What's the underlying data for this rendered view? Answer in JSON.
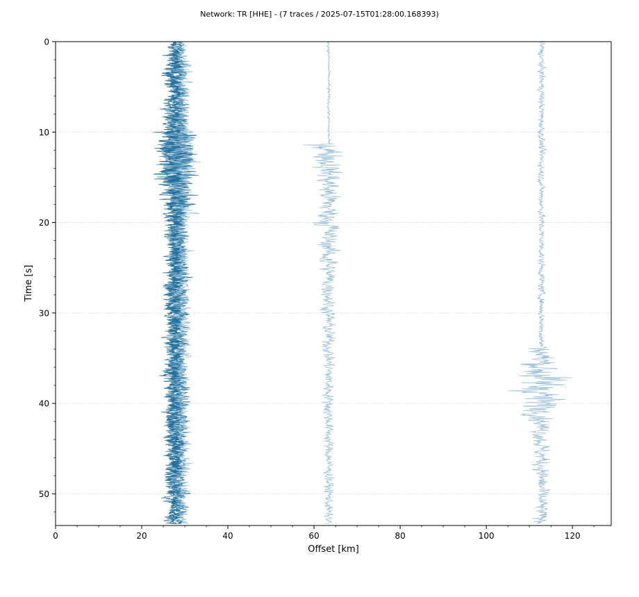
{
  "chart_data": {
    "type": "seismic-record-section",
    "title": "Network: TR [HHE] - (7 traces / 2025-07-15T01:28:00.168393)",
    "xlabel": "Offset [km]",
    "ylabel": "Time [s]",
    "xlim": [
      0,
      129
    ],
    "ylim": [
      53.5,
      0
    ],
    "y_inverted": true,
    "xticks": [
      "0",
      "20",
      "40",
      "60",
      "80",
      "100",
      "120"
    ],
    "yticks": [
      "0",
      "10",
      "20",
      "30",
      "40",
      "50"
    ],
    "grid": "horizontal dotted at major y ticks",
    "colors": {
      "dark_trace": "#1f6e9c",
      "light_trace": "#8fbad4"
    },
    "traces": [
      {
        "offset_km": 27.2,
        "color": "dark",
        "max_amp_km": 7.0,
        "time_range": [
          0,
          53.3
        ]
      },
      {
        "offset_km": 27.6,
        "color": "dark",
        "max_amp_km": 6.5,
        "time_range": [
          0,
          53.3
        ]
      },
      {
        "offset_km": 28.3,
        "color": "dark",
        "max_amp_km": 6.8,
        "time_range": [
          0,
          53.3
        ]
      },
      {
        "offset_km": 28.9,
        "color": "dark",
        "max_amp_km": 6.2,
        "time_range": [
          0,
          53.3
        ]
      },
      {
        "offset_km": 29.5,
        "color": "light",
        "max_amp_km": 6.0,
        "time_range": [
          0,
          53.3
        ]
      },
      {
        "offset_km": 63.4,
        "color": "light",
        "max_amp_km": 8.5,
        "time_range": [
          0,
          53.3
        ],
        "onset_s": 11.3
      },
      {
        "offset_km": 112.8,
        "color": "light",
        "max_amp_km": 11.0,
        "time_range": [
          0,
          53.3
        ],
        "onset_s": 33.8
      }
    ]
  }
}
